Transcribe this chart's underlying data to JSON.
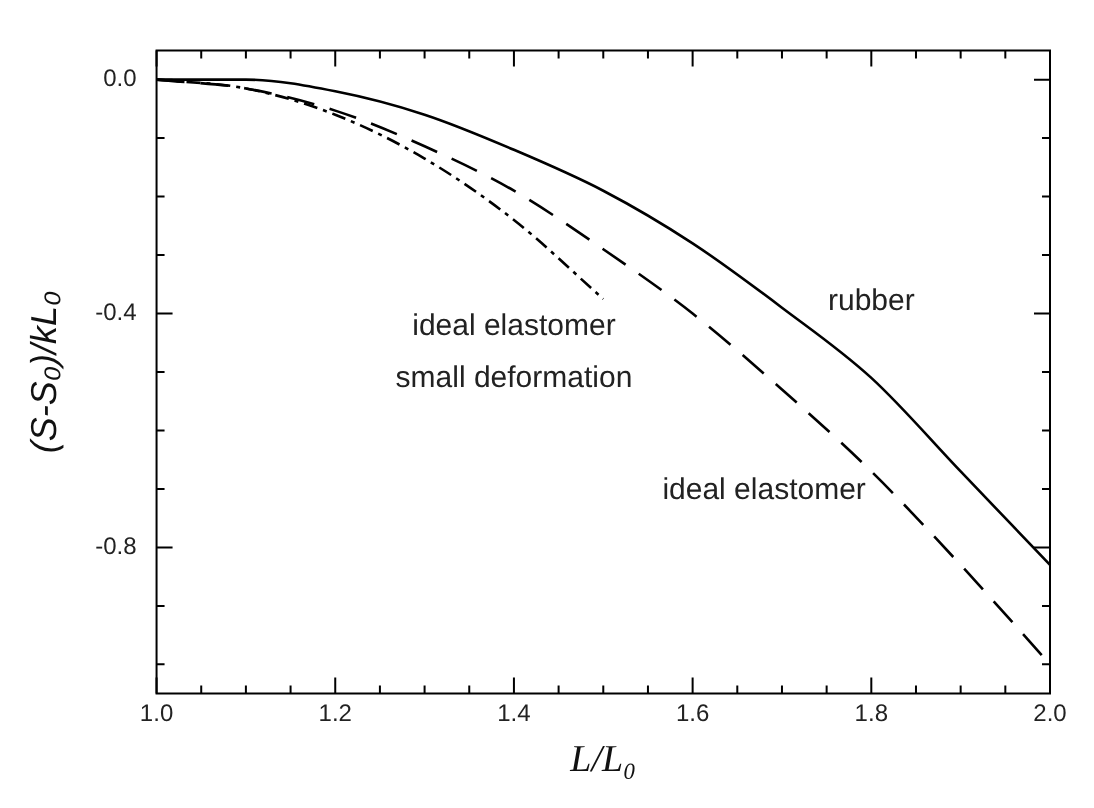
{
  "chart_data": {
    "type": "line",
    "xlabel": "L/L₀",
    "ylabel": "(S-S₀)/kL₀",
    "xlim": [
      1.0,
      2.0
    ],
    "ylim": [
      -1.05,
      0.05
    ],
    "xticks": [
      {
        "value": 1,
        "label": "1.0"
      },
      {
        "value": 1.05,
        "label": null
      },
      {
        "value": 1.1,
        "label": null
      },
      {
        "value": 1.15,
        "label": null
      },
      1.2,
      {
        "value": 1.25,
        "label": null
      },
      {
        "value": 1.3,
        "label": null
      },
      {
        "value": 1.35,
        "label": null
      },
      1.4,
      {
        "value": 1.45,
        "label": null
      },
      {
        "value": 1.5,
        "label": null
      },
      {
        "value": 1.55,
        "label": null
      },
      1.6,
      {
        "value": 1.65,
        "label": null
      },
      {
        "value": 1.7,
        "label": null
      },
      {
        "value": 1.75,
        "label": null
      },
      1.8,
      {
        "value": 1.85,
        "label": null
      },
      {
        "value": 1.9,
        "label": null
      },
      {
        "value": 1.95,
        "label": null
      },
      {
        "value": 2,
        "label": "2.0"
      }
    ],
    "yticks": [
      {
        "value": 0,
        "label": "0.0"
      },
      {
        "value": -0.1,
        "label": null
      },
      {
        "value": -0.2,
        "label": null
      },
      {
        "value": -0.3,
        "label": null
      },
      -0.4,
      {
        "value": -0.5,
        "label": null
      },
      {
        "value": -0.6,
        "label": null
      },
      {
        "value": -0.7,
        "label": null
      },
      -0.8,
      {
        "value": -0.9,
        "label": null
      },
      {
        "value": -1.0,
        "label": null
      }
    ],
    "grid": false,
    "legend": false,
    "marker": "none",
    "series": [
      {
        "color": "#000000",
        "line_style": "solid",
        "x": [
          1.0,
          1.1,
          1.2,
          1.3,
          1.4,
          1.5,
          1.6,
          1.7,
          1.8,
          1.9,
          2.0
        ],
        "values": [
          0,
          0,
          -0.02,
          -0.06,
          -0.12,
          -0.19,
          -0.28,
          -0.39,
          -0.51,
          -0.67,
          -0.83
        ]
      },
      {
        "color": "#000000",
        "line_style": "dashed",
        "x": [
          1.0,
          1.1,
          1.2,
          1.3,
          1.4,
          1.5,
          1.6,
          1.7,
          1.8,
          1.9,
          2.0
        ],
        "values": [
          0,
          -0.015,
          -0.053,
          -0.114,
          -0.19,
          -0.29,
          -0.4,
          -0.53,
          -0.67,
          -0.83,
          -1.0
        ]
      },
      {
        "color": "#000000",
        "line_style": "dotted",
        "x": [
          1.0,
          1.1,
          1.2,
          1.3,
          1.4,
          1.5
        ],
        "values": [
          0,
          -0.015,
          -0.06,
          -0.135,
          -0.24,
          -0.375
        ]
      }
    ],
    "annotations": [
      "rubber",
      "ideal elastomer",
      "small deformation",
      "ideal elastomer"
    ]
  }
}
